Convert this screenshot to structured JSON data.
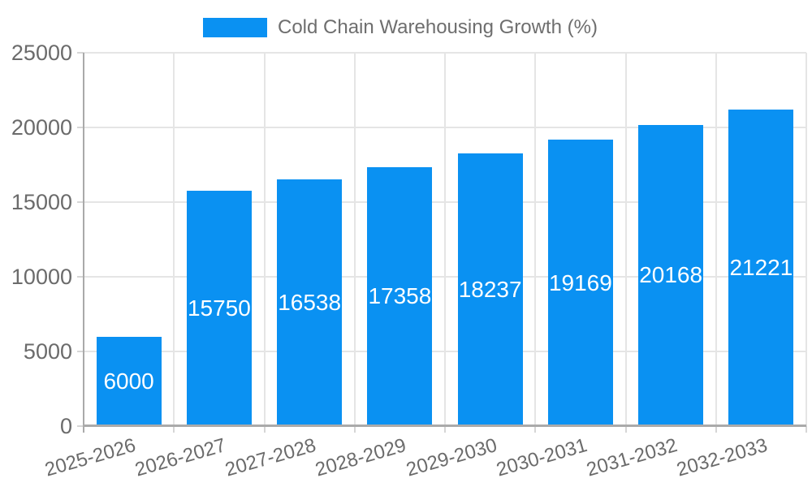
{
  "legend": {
    "items": [
      {
        "label": "Cold Chain Warehousing Growth (%)",
        "color": "#0a91f2"
      }
    ]
  },
  "colors": {
    "bar": "#0a91f2",
    "value_label": "#ffffff",
    "grid": "#e5e5e5",
    "axis": "#aaaaaa",
    "tick": "#d6d6d6",
    "text": "#6b6b6b",
    "background": "#ffffff"
  },
  "chart_data": {
    "type": "bar",
    "title": "Cold Chain Warehousing Growth (%)",
    "series_name": "Cold Chain Warehousing Growth (%)",
    "categories": [
      "2025-2026",
      "2026-2027",
      "2027-2028",
      "2028-2029",
      "2029-2030",
      "2030-2031",
      "2031-2032",
      "2032-2033"
    ],
    "values": [
      6000,
      15750,
      16538,
      17358,
      18237,
      19169,
      20168,
      21221
    ],
    "value_labels": [
      "6000",
      "15750",
      "16538",
      "17358",
      "18237",
      "19169",
      "20168",
      "21221"
    ],
    "ytick_labels": [
      "0",
      "5000",
      "10000",
      "15000",
      "20000",
      "25000"
    ],
    "yticks": [
      0,
      5000,
      10000,
      15000,
      20000,
      25000
    ],
    "ylim": [
      0,
      25000
    ],
    "xlabel": "",
    "ylabel": "",
    "grid": true,
    "legend_position": "top",
    "value_labels_position": "inside-center",
    "x_tick_rotation_deg": -16
  }
}
